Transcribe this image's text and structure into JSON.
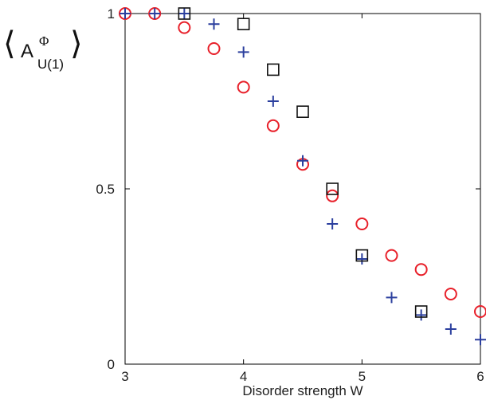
{
  "chart_data": {
    "type": "scatter",
    "xlabel": "Disorder strength W",
    "ylabel": {
      "base": "A",
      "superscript": "Φ",
      "subscript": "U(1)",
      "left_bracket": "⟨",
      "right_bracket": "⟩"
    },
    "xlim": [
      3,
      6
    ],
    "ylim": [
      0,
      1
    ],
    "xticks": [
      {
        "value": 3,
        "label": "3"
      },
      {
        "value": 4,
        "label": "4"
      },
      {
        "value": 5,
        "label": "5"
      },
      {
        "value": 6,
        "label": "6"
      }
    ],
    "yticks": [
      {
        "value": 0,
        "label": "0"
      },
      {
        "value": 0.5,
        "label": "0.5"
      },
      {
        "value": 1,
        "label": "1"
      }
    ],
    "grid": false,
    "legend": "none",
    "series": [
      {
        "marker": "circle",
        "color": "#e8202a",
        "x": [
          3.0,
          3.25,
          3.5,
          3.75,
          4.0,
          4.25,
          4.5,
          4.75,
          5.0,
          5.25,
          5.5,
          5.75,
          6.0
        ],
        "y": [
          1.0,
          1.0,
          0.96,
          0.9,
          0.79,
          0.68,
          0.57,
          0.48,
          0.4,
          0.31,
          0.27,
          0.2,
          0.15
        ]
      },
      {
        "marker": "plus",
        "color": "#2b3f9e",
        "x": [
          3.0,
          3.25,
          3.5,
          3.75,
          4.0,
          4.25,
          4.5,
          4.75,
          5.0,
          5.25,
          5.5,
          5.75,
          6.0
        ],
        "y": [
          1.0,
          1.0,
          1.0,
          0.97,
          0.89,
          0.75,
          0.58,
          0.4,
          0.3,
          0.19,
          0.14,
          0.1,
          0.07
        ]
      },
      {
        "marker": "square",
        "color": "#111111",
        "x": [
          3.5,
          4.0,
          4.25,
          4.5,
          4.75,
          5.0,
          5.5
        ],
        "y": [
          1.0,
          0.97,
          0.84,
          0.72,
          0.5,
          0.31,
          0.15
        ]
      }
    ]
  }
}
